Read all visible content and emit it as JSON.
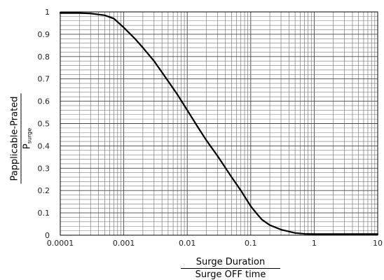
{
  "chart_data": {
    "type": "line",
    "xscale": "log",
    "xlim": [
      0.0001,
      10
    ],
    "ylim": [
      0,
      1
    ],
    "grid": true,
    "ylabel": {
      "numerator": "Papplicable-Prated",
      "denominator_main": "P",
      "denominator_sub": "surge"
    },
    "xlabel": {
      "numerator": "Surge Duration",
      "denominator": "Surge OFF time"
    },
    "x_tick_labels": [
      "0.0001",
      "0.001",
      "0.01",
      "0.1",
      "1",
      "10"
    ],
    "x_ticks": [
      0.0001,
      0.001,
      0.01,
      0.1,
      1,
      10
    ],
    "y_tick_labels": [
      "0",
      "0.1",
      "0.2",
      "0.3",
      "0.4",
      "0.5",
      "0.6",
      "0.7",
      "0.8",
      "0.9",
      "1"
    ],
    "y_ticks": [
      0,
      0.1,
      0.2,
      0.3,
      0.4,
      0.5,
      0.6,
      0.7,
      0.8,
      0.9,
      1
    ],
    "series": [
      {
        "x": [
          0.0001,
          0.0002,
          0.0003,
          0.0005,
          0.0007,
          0.001,
          0.0015,
          0.002,
          0.003,
          0.005,
          0.007,
          0.01,
          0.015,
          0.02,
          0.03,
          0.05,
          0.07,
          0.1,
          0.13,
          0.15,
          0.2,
          0.3,
          0.5,
          0.7,
          1,
          2,
          5,
          10
        ],
        "y": [
          0.995,
          0.995,
          0.993,
          0.985,
          0.97,
          0.93,
          0.88,
          0.84,
          0.78,
          0.69,
          0.63,
          0.56,
          0.48,
          0.425,
          0.355,
          0.26,
          0.2,
          0.13,
          0.09,
          0.07,
          0.045,
          0.025,
          0.01,
          0.006,
          0.005,
          0.005,
          0.005,
          0.005
        ],
        "color": "#000000"
      }
    ]
  }
}
